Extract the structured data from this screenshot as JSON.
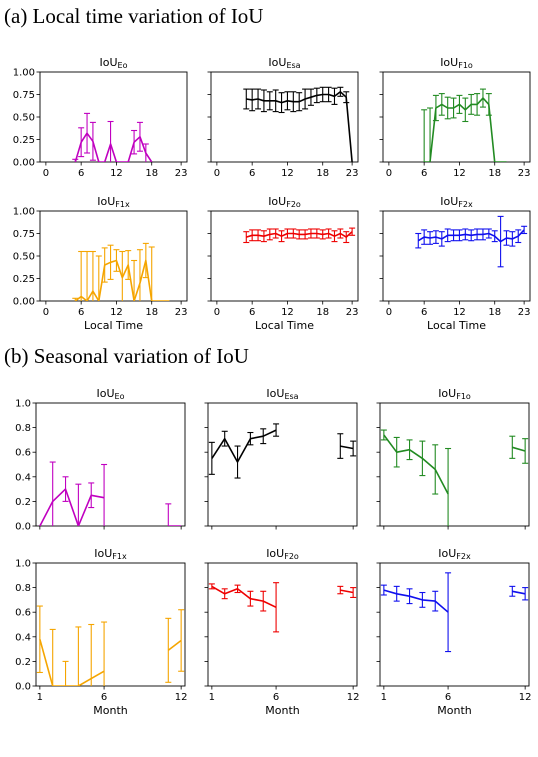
{
  "section_a": {
    "title": "(a) Local time variation of IoU"
  },
  "section_b": {
    "title": "(b) Seasonal variation of IoU"
  },
  "chart_data": [
    {
      "type": "line",
      "group": "a",
      "title_base": "IoU",
      "title_sub": "Eo",
      "color": "#c000c0",
      "xlim": [
        -1,
        24
      ],
      "ylim": [
        0,
        1
      ],
      "xticks": [
        0,
        6,
        12,
        18,
        23
      ],
      "yticks": [
        "0.00",
        "0.25",
        "0.50",
        "0.75",
        "1.00"
      ],
      "xlabel": "",
      "points": [
        [
          5,
          0.0,
          0.03
        ],
        [
          6,
          0.22,
          0.16
        ],
        [
          7,
          0.32,
          0.22
        ],
        [
          8,
          0.23,
          0.21
        ],
        [
          9,
          0.0,
          0.0
        ],
        [
          10,
          0.0,
          0.0
        ],
        [
          11,
          0.2,
          0.25
        ],
        [
          12,
          0.0,
          0.0
        ],
        [
          13,
          0.0,
          0.0
        ],
        [
          14,
          0.0,
          0.0
        ],
        [
          15,
          0.22,
          0.13
        ],
        [
          16,
          0.28,
          0.16
        ],
        [
          17,
          0.1,
          0.1
        ],
        [
          18,
          0.0,
          0.0
        ]
      ]
    },
    {
      "type": "line",
      "group": "a",
      "title_base": "IoU",
      "title_sub": "Esa",
      "color": "#000000",
      "xlim": [
        -1,
        24
      ],
      "ylim": [
        0,
        1
      ],
      "xticks": [
        0,
        6,
        12,
        18,
        23
      ],
      "yticks": [],
      "xlabel": "",
      "points": [
        [
          5,
          0.7,
          0.11
        ],
        [
          6,
          0.69,
          0.12
        ],
        [
          7,
          0.7,
          0.11
        ],
        [
          8,
          0.68,
          0.12
        ],
        [
          9,
          0.68,
          0.1
        ],
        [
          10,
          0.68,
          0.12
        ],
        [
          11,
          0.66,
          0.11
        ],
        [
          12,
          0.68,
          0.1
        ],
        [
          13,
          0.67,
          0.11
        ],
        [
          14,
          0.67,
          0.1
        ],
        [
          15,
          0.7,
          0.11
        ],
        [
          16,
          0.72,
          0.09
        ],
        [
          17,
          0.74,
          0.08
        ],
        [
          18,
          0.75,
          0.08
        ],
        [
          19,
          0.75,
          0.08
        ],
        [
          20,
          0.73,
          0.09
        ],
        [
          21,
          0.78,
          0.05
        ],
        [
          22,
          0.72,
          0.06
        ],
        [
          23,
          0.0,
          0.0
        ]
      ]
    },
    {
      "type": "line",
      "group": "a",
      "title_base": "IoU",
      "title_sub": "F1o",
      "color": "#228b22",
      "xlim": [
        -1,
        24
      ],
      "ylim": [
        0,
        1
      ],
      "xticks": [
        0,
        6,
        12,
        18,
        23
      ],
      "yticks": [],
      "xlabel": "",
      "points": [
        [
          6,
          0.0,
          0.58
        ],
        [
          7,
          0.0,
          0.6
        ],
        [
          8,
          0.6,
          0.14
        ],
        [
          9,
          0.64,
          0.12
        ],
        [
          10,
          0.6,
          0.12
        ],
        [
          11,
          0.6,
          0.11
        ],
        [
          12,
          0.64,
          0.1
        ],
        [
          13,
          0.58,
          0.13
        ],
        [
          14,
          0.64,
          0.11
        ],
        [
          15,
          0.64,
          0.12
        ],
        [
          16,
          0.71,
          0.1
        ],
        [
          17,
          0.64,
          0.12
        ],
        [
          18,
          0.0,
          0.0
        ],
        [
          19,
          0.0,
          0.0
        ],
        [
          20,
          0.0,
          0.0
        ]
      ]
    },
    {
      "type": "line",
      "group": "a",
      "title_base": "IoU",
      "title_sub": "F1x",
      "color": "#f5a500",
      "xlim": [
        -1,
        24
      ],
      "ylim": [
        0,
        1
      ],
      "xticks": [
        0,
        6,
        12,
        18,
        23
      ],
      "yticks": [
        "0.00",
        "0.25",
        "0.50",
        "0.75",
        "1.00"
      ],
      "xlabel": "Local Time",
      "points": [
        [
          5,
          0.0,
          0.03
        ],
        [
          6,
          0.05,
          0.5
        ],
        [
          7,
          0.0,
          0.55
        ],
        [
          8,
          0.11,
          0.44
        ],
        [
          9,
          0.0,
          0.5
        ],
        [
          10,
          0.4,
          0.19
        ],
        [
          11,
          0.43,
          0.19
        ],
        [
          12,
          0.45,
          0.12
        ],
        [
          13,
          0.26,
          0.29
        ],
        [
          14,
          0.4,
          0.16
        ],
        [
          15,
          0.0,
          0.45
        ],
        [
          16,
          0.2,
          0.37
        ],
        [
          17,
          0.45,
          0.19
        ],
        [
          18,
          0.0,
          0.6
        ],
        [
          19,
          0.0,
          0.0
        ],
        [
          20,
          0.0,
          0.0
        ],
        [
          21,
          0.0,
          0.0
        ]
      ]
    },
    {
      "type": "line",
      "group": "a",
      "title_base": "IoU",
      "title_sub": "F2o",
      "color": "#ee0000",
      "xlim": [
        -1,
        24
      ],
      "ylim": [
        0,
        1
      ],
      "xticks": [
        0,
        6,
        12,
        18,
        23
      ],
      "yticks": [],
      "xlabel": "Local Time",
      "points": [
        [
          5,
          0.71,
          0.06
        ],
        [
          6,
          0.73,
          0.06
        ],
        [
          7,
          0.73,
          0.06
        ],
        [
          8,
          0.72,
          0.06
        ],
        [
          9,
          0.74,
          0.06
        ],
        [
          10,
          0.75,
          0.05
        ],
        [
          11,
          0.72,
          0.06
        ],
        [
          12,
          0.75,
          0.05
        ],
        [
          13,
          0.75,
          0.05
        ],
        [
          14,
          0.74,
          0.05
        ],
        [
          15,
          0.74,
          0.05
        ],
        [
          16,
          0.75,
          0.05
        ],
        [
          17,
          0.75,
          0.05
        ],
        [
          18,
          0.74,
          0.05
        ],
        [
          19,
          0.75,
          0.05
        ],
        [
          20,
          0.72,
          0.06
        ],
        [
          21,
          0.75,
          0.05
        ],
        [
          22,
          0.71,
          0.06
        ],
        [
          23,
          0.77,
          0.04
        ]
      ]
    },
    {
      "type": "line",
      "group": "a",
      "title_base": "IoU",
      "title_sub": "F2x",
      "color": "#1010ee",
      "xlim": [
        -1,
        24
      ],
      "ylim": [
        0,
        1
      ],
      "xticks": [
        0,
        6,
        12,
        18,
        23
      ],
      "yticks": [],
      "xlabel": "Local Time",
      "points": [
        [
          5,
          0.67,
          0.08
        ],
        [
          6,
          0.71,
          0.08
        ],
        [
          7,
          0.7,
          0.07
        ],
        [
          8,
          0.71,
          0.07
        ],
        [
          9,
          0.69,
          0.08
        ],
        [
          10,
          0.73,
          0.07
        ],
        [
          11,
          0.73,
          0.06
        ],
        [
          12,
          0.73,
          0.06
        ],
        [
          13,
          0.74,
          0.06
        ],
        [
          14,
          0.73,
          0.06
        ],
        [
          15,
          0.74,
          0.06
        ],
        [
          16,
          0.74,
          0.06
        ],
        [
          17,
          0.75,
          0.05
        ],
        [
          18,
          0.72,
          0.06
        ],
        [
          19,
          0.66,
          0.28
        ],
        [
          20,
          0.7,
          0.08
        ],
        [
          21,
          0.69,
          0.08
        ],
        [
          22,
          0.72,
          0.07
        ],
        [
          23,
          0.79,
          0.04
        ]
      ]
    },
    {
      "type": "line",
      "group": "b",
      "title_base": "IoU",
      "title_sub": "Eo",
      "color": "#c000c0",
      "xlim": [
        0.7,
        12.3
      ],
      "ylim": [
        0,
        1
      ],
      "xticks": [],
      "yticks": [
        "0.0",
        "0.2",
        "0.4",
        "0.6",
        "0.8",
        "1.0"
      ],
      "xlabel": "",
      "points": [
        [
          1,
          0.0,
          0.0
        ],
        [
          2,
          0.2,
          0.32
        ],
        [
          3,
          0.3,
          0.1
        ],
        [
          4,
          0.0,
          0.34
        ],
        [
          5,
          0.25,
          0.1
        ],
        [
          6,
          0.23,
          0.27
        ],
        [
          11,
          0.0,
          0.18
        ],
        [
          12,
          0.0,
          0.0
        ]
      ]
    },
    {
      "type": "line",
      "group": "b",
      "title_base": "IoU",
      "title_sub": "Esa",
      "color": "#000000",
      "xlim": [
        0.7,
        12.3
      ],
      "ylim": [
        0,
        1
      ],
      "xticks": [],
      "yticks": [],
      "xlabel": "",
      "points": [
        [
          1,
          0.55,
          0.13
        ],
        [
          2,
          0.71,
          0.06
        ],
        [
          3,
          0.52,
          0.13
        ],
        [
          4,
          0.71,
          0.05
        ],
        [
          5,
          0.73,
          0.06
        ],
        [
          6,
          0.78,
          0.05
        ],
        [
          11,
          0.65,
          0.1
        ],
        [
          12,
          0.63,
          0.06
        ]
      ]
    },
    {
      "type": "line",
      "group": "b",
      "title_base": "IoU",
      "title_sub": "F1o",
      "color": "#228b22",
      "xlim": [
        0.7,
        12.3
      ],
      "ylim": [
        0,
        1
      ],
      "xticks": [],
      "yticks": [],
      "xlabel": "",
      "points": [
        [
          1,
          0.74,
          0.04
        ],
        [
          2,
          0.6,
          0.12
        ],
        [
          3,
          0.62,
          0.08
        ],
        [
          4,
          0.55,
          0.14
        ],
        [
          5,
          0.46,
          0.2
        ],
        [
          6,
          0.26,
          0.37
        ],
        [
          11,
          0.64,
          0.09
        ],
        [
          12,
          0.61,
          0.1
        ]
      ]
    },
    {
      "type": "line",
      "group": "b",
      "title_base": "IoU",
      "title_sub": "F1x",
      "color": "#f5a500",
      "xlim": [
        0.7,
        12.3
      ],
      "ylim": [
        0,
        1
      ],
      "xticks": [
        1,
        6,
        12
      ],
      "yticks": [
        "0.0",
        "0.2",
        "0.4",
        "0.6",
        "0.8",
        "1.0"
      ],
      "xlabel": "Month",
      "points": [
        [
          1,
          0.38,
          0.27
        ],
        [
          2,
          0.0,
          0.46
        ],
        [
          3,
          0.0,
          0.2
        ],
        [
          4,
          0.0,
          0.48
        ],
        [
          5,
          0.06,
          0.44
        ],
        [
          6,
          0.12,
          0.4
        ],
        [
          11,
          0.29,
          0.26
        ],
        [
          12,
          0.37,
          0.25
        ]
      ]
    },
    {
      "type": "line",
      "group": "b",
      "title_base": "IoU",
      "title_sub": "F2o",
      "color": "#ee0000",
      "xlim": [
        0.7,
        12.3
      ],
      "ylim": [
        0,
        1
      ],
      "xticks": [
        1,
        6,
        12
      ],
      "yticks": [],
      "xlabel": "Month",
      "points": [
        [
          1,
          0.81,
          0.02
        ],
        [
          2,
          0.75,
          0.04
        ],
        [
          3,
          0.79,
          0.03
        ],
        [
          4,
          0.71,
          0.06
        ],
        [
          5,
          0.69,
          0.08
        ],
        [
          6,
          0.64,
          0.2
        ],
        [
          11,
          0.78,
          0.03
        ],
        [
          12,
          0.76,
          0.04
        ]
      ]
    },
    {
      "type": "line",
      "group": "b",
      "title_base": "IoU",
      "title_sub": "F2x",
      "color": "#1010ee",
      "xlim": [
        0.7,
        12.3
      ],
      "ylim": [
        0,
        1
      ],
      "xticks": [
        1,
        6,
        12
      ],
      "yticks": [],
      "xlabel": "Month",
      "points": [
        [
          1,
          0.78,
          0.04
        ],
        [
          2,
          0.75,
          0.06
        ],
        [
          3,
          0.73,
          0.06
        ],
        [
          4,
          0.7,
          0.06
        ],
        [
          5,
          0.69,
          0.08
        ],
        [
          6,
          0.6,
          0.32
        ],
        [
          11,
          0.77,
          0.04
        ],
        [
          12,
          0.75,
          0.05
        ]
      ]
    }
  ]
}
